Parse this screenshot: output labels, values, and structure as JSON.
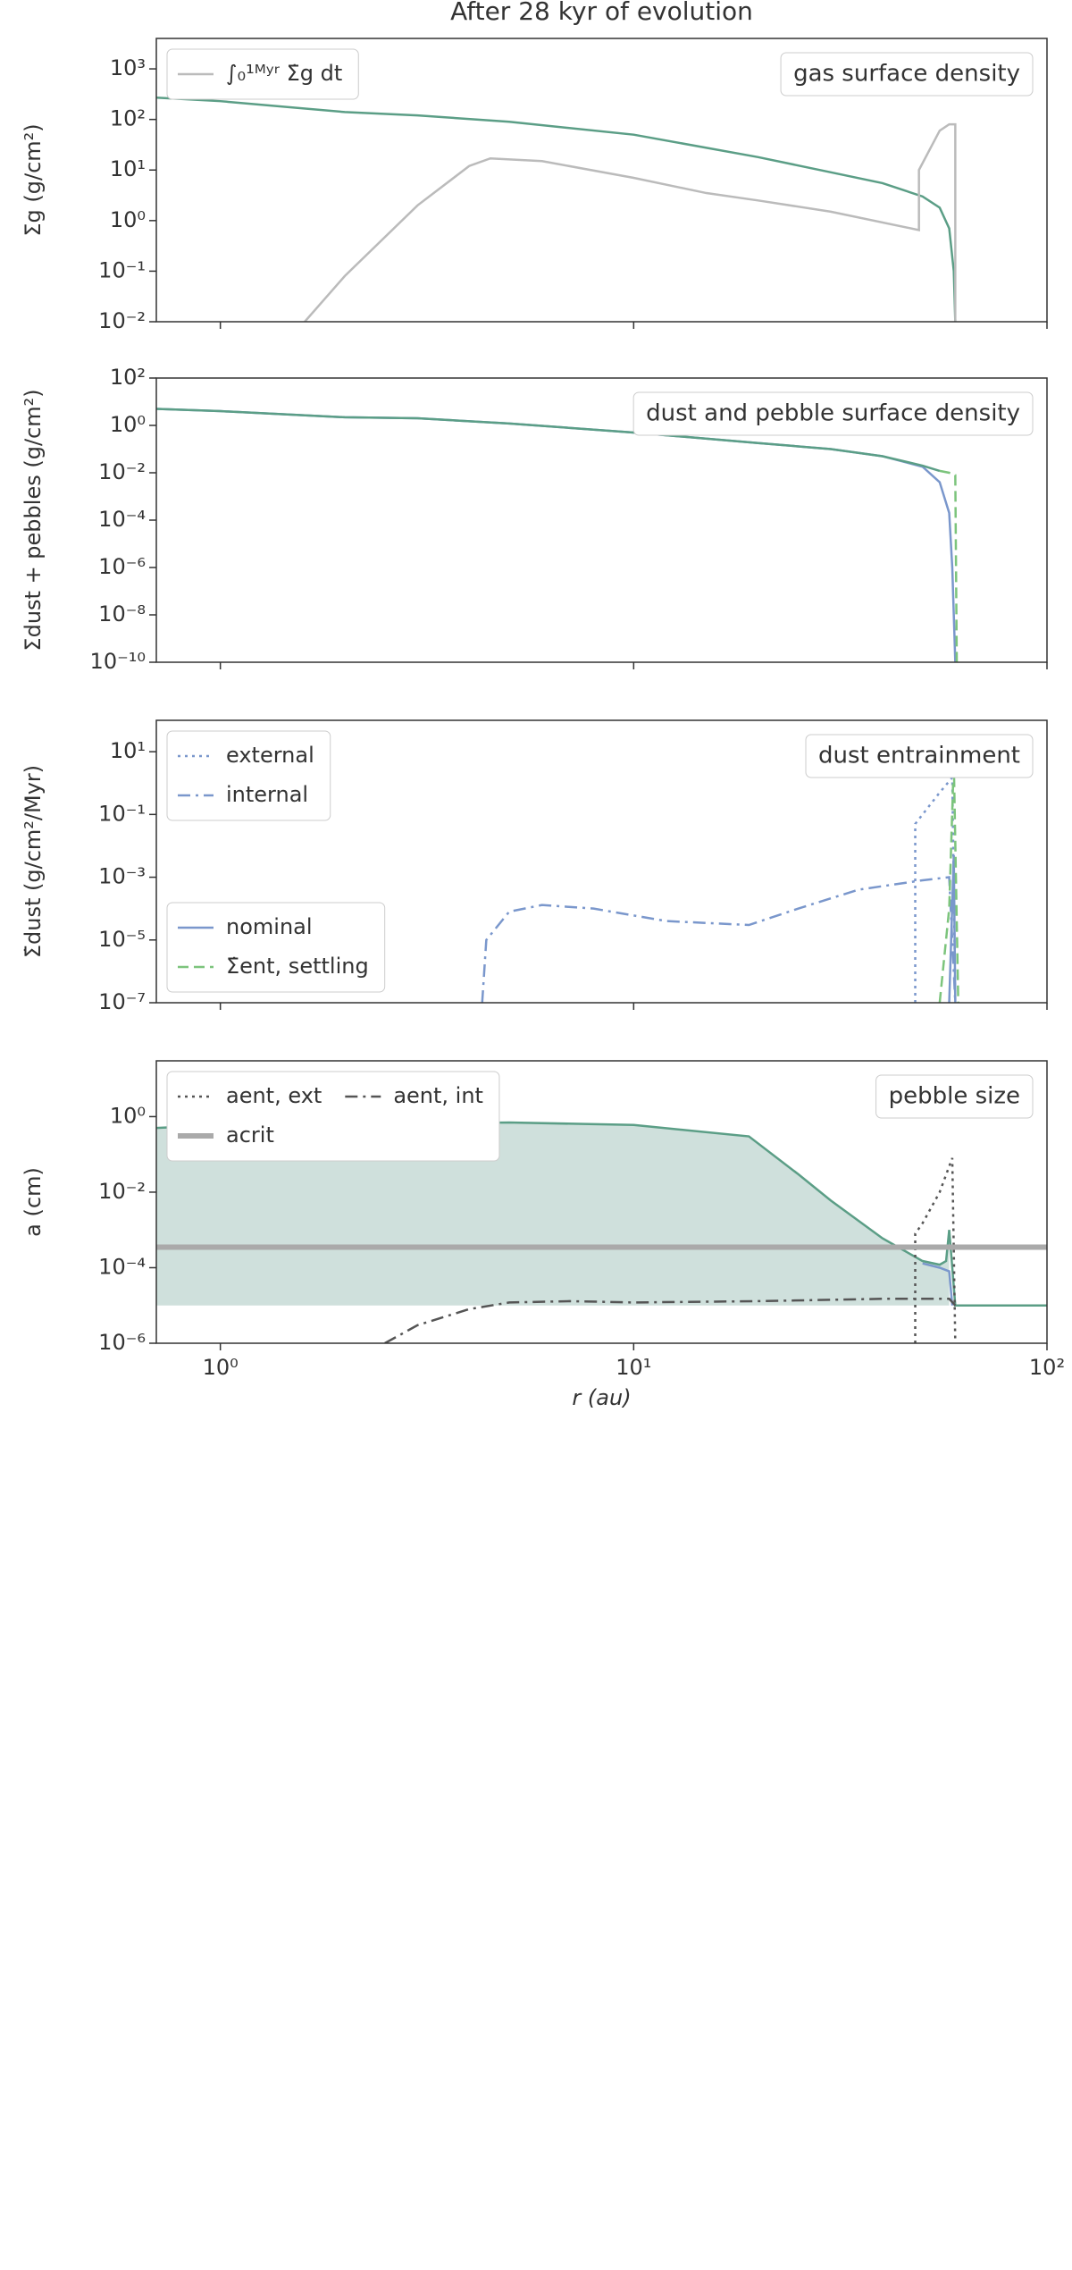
{
  "chart_data": [
    {
      "type": "line",
      "title": "After 28 kyr of evolution",
      "annotation": "gas surface density",
      "ylabel": "Σg (g/cm²)",
      "xscale": "log",
      "yscale": "log",
      "xlim": [
        0.7,
        100
      ],
      "xticks": [
        1,
        10,
        100
      ],
      "ylim": [
        0.01,
        4000
      ],
      "yticks": [
        {
          "value": 0.01,
          "label": "10⁻²"
        },
        {
          "value": 0.1,
          "label": "10⁻¹"
        },
        {
          "value": 1,
          "label": "10⁰"
        },
        {
          "value": 10,
          "label": "10¹"
        },
        {
          "value": 100,
          "label": "10²"
        },
        {
          "value": 1000,
          "label": "10³"
        }
      ],
      "series": [
        {
          "color": "#5b9e86",
          "dash": "solid",
          "x": [
            0.7,
            1,
            2,
            3,
            5,
            10,
            20,
            30,
            40,
            50,
            55,
            58,
            59.5,
            60
          ],
          "values": [
            270,
            230,
            140,
            120,
            90,
            50,
            18,
            9,
            5.5,
            3,
            1.8,
            0.7,
            0.1,
            0.01
          ]
        },
        {
          "name": "∫₀¹ᴹʸʳ Σ̇g dt",
          "color": "#bbbbbb",
          "dash": "solid",
          "legend": "upper left",
          "x": [
            1.6,
            2,
            3,
            4,
            4.5,
            6,
            10,
            15,
            20,
            30,
            49,
            49,
            55,
            58,
            60,
            60
          ],
          "values": [
            0.01,
            0.08,
            2,
            12,
            17,
            15,
            7,
            3.5,
            2.5,
            1.5,
            0.65,
            10,
            60,
            80,
            80,
            0.01
          ]
        }
      ]
    },
    {
      "type": "line",
      "annotation": "dust and pebble surface density",
      "ylabel": "Σdust + pebbles (g/cm²)",
      "xscale": "log",
      "yscale": "log",
      "xlim": [
        0.7,
        100
      ],
      "xticks": [
        1,
        10,
        100
      ],
      "ylim": [
        1e-10,
        100
      ],
      "yticks": [
        {
          "value": 1e-10,
          "label": "10⁻¹⁰"
        },
        {
          "value": 1e-08,
          "label": "10⁻⁸"
        },
        {
          "value": 1e-06,
          "label": "10⁻⁶"
        },
        {
          "value": 0.0001,
          "label": "10⁻⁴"
        },
        {
          "value": 0.01,
          "label": "10⁻²"
        },
        {
          "value": 1,
          "label": "10⁰"
        },
        {
          "value": 100,
          "label": "10²"
        }
      ],
      "series": [
        {
          "color": "#7a97cc",
          "dash": "solid",
          "x": [
            0.7,
            1,
            2,
            3,
            5,
            10,
            20,
            30,
            40,
            50,
            55,
            58,
            59,
            60
          ],
          "values": [
            5,
            4,
            2.2,
            2,
            1.2,
            0.5,
            0.18,
            0.1,
            0.05,
            0.018,
            0.004,
            0.0002,
            1e-06,
            1e-10
          ]
        },
        {
          "color": "#5b9e86",
          "dash": "solid",
          "x": [
            0.7,
            1,
            2,
            3,
            5,
            10,
            20,
            30,
            40,
            50,
            55
          ],
          "values": [
            5,
            4,
            2.2,
            2,
            1.2,
            0.5,
            0.18,
            0.1,
            0.05,
            0.02,
            0.012
          ]
        },
        {
          "color": "#7cc47c",
          "dash": "dashed",
          "x": [
            55,
            58,
            60,
            60.5
          ],
          "values": [
            0.012,
            0.01,
            0.008,
            1e-10
          ]
        }
      ]
    },
    {
      "type": "line",
      "annotation": "dust entrainment",
      "ylabel": "Σ̇dust (g/cm²/Myr)",
      "xscale": "log",
      "yscale": "log",
      "xlim": [
        0.7,
        100
      ],
      "xticks": [
        1,
        10,
        100
      ],
      "ylim": [
        1e-07,
        100
      ],
      "yticks": [
        {
          "value": 1e-07,
          "label": "10⁻⁷"
        },
        {
          "value": 1e-05,
          "label": "10⁻⁵"
        },
        {
          "value": 0.001,
          "label": "10⁻³"
        },
        {
          "value": 0.1,
          "label": "10⁻¹"
        },
        {
          "value": 10,
          "label": "10¹"
        }
      ],
      "series": [
        {
          "name": "external",
          "color": "#7a97cc",
          "dash": "dotted",
          "legend": "upper left",
          "x": [
            48,
            48,
            50,
            55,
            59,
            60
          ],
          "values": [
            1e-07,
            0.05,
            0.1,
            0.5,
            1.5,
            1e-07
          ]
        },
        {
          "name": "internal",
          "color": "#7a97cc",
          "dash": "dashdot",
          "legend": "upper left",
          "x": [
            4.3,
            4.4,
            5,
            6,
            8,
            12,
            19,
            25,
            35,
            50,
            58,
            60
          ],
          "values": [
            1e-07,
            1e-05,
            8e-05,
            0.00013,
            0.0001,
            4e-05,
            3e-05,
            0.0001,
            0.0004,
            0.0008,
            0.001,
            1e-07
          ]
        },
        {
          "name": "nominal",
          "color": "#7a97cc",
          "dash": "solid",
          "legend": "lower left",
          "x": [
            58,
            59.5,
            60
          ],
          "values": [
            1e-07,
            0.005,
            1e-07
          ]
        },
        {
          "name": "Σ̇ent, settling",
          "color": "#7cc47c",
          "dash": "dashed",
          "legend": "lower left",
          "x": [
            55,
            58,
            59.5,
            61
          ],
          "values": [
            1e-07,
            0.0001,
            5,
            1e-07
          ]
        }
      ]
    },
    {
      "type": "line",
      "annotation": "pebble size",
      "legend_columns": 2,
      "ylabel": "a (cm)",
      "xlabel": "r (au)",
      "xscale": "log",
      "yscale": "log",
      "xlim": [
        0.7,
        100
      ],
      "xticks": [
        {
          "value": 1,
          "label": "10⁰"
        },
        {
          "value": 10,
          "label": "10¹"
        },
        {
          "value": 100,
          "label": "10²"
        }
      ],
      "ylim": [
        1e-06,
        30
      ],
      "yticks": [
        {
          "value": 1e-06,
          "label": "10⁻⁶"
        },
        {
          "value": 0.0001,
          "label": "10⁻⁴"
        },
        {
          "value": 0.01,
          "label": "10⁻²"
        },
        {
          "value": 1,
          "label": "10⁰"
        }
      ],
      "series": [
        {
          "color": "#5b9e86",
          "dash": "solid",
          "fill": "#cfe0dc",
          "fill_to": 1e-05,
          "x": [
            0.7,
            1,
            2,
            3,
            5,
            10,
            19,
            25,
            30,
            40,
            50,
            55,
            57,
            58
          ],
          "values": [
            0.5,
            0.6,
            0.55,
            0.65,
            0.7,
            0.6,
            0.3,
            0.03,
            0.006,
            0.0006,
            0.00015,
            0.00012,
            0.00015,
            0.001
          ]
        },
        {
          "color": "#5b9e86",
          "dash": "solid",
          "x": [
            58,
            59,
            60,
            100
          ],
          "values": [
            0.001,
            0.0001,
            1e-05,
            1e-05
          ]
        },
        {
          "color": "#7a97cc",
          "dash": "solid",
          "x": [
            50,
            55,
            58,
            59
          ],
          "values": [
            0.00013,
            0.0001,
            8e-05,
            1e-05
          ]
        },
        {
          "name": "aent, ext",
          "color": "#555555",
          "dash": "dotted",
          "legend": "upper left",
          "x": [
            48,
            48,
            50,
            55,
            59,
            60
          ],
          "values": [
            1e-06,
            0.0008,
            0.0015,
            0.01,
            0.08,
            1e-06
          ]
        },
        {
          "name": "aent, int",
          "color": "#555555",
          "dash": "dashdot",
          "legend": "upper left",
          "x": [
            2.5,
            3,
            4,
            5,
            7,
            10,
            20,
            40,
            58,
            60
          ],
          "values": [
            1e-06,
            3e-06,
            8e-06,
            1.2e-05,
            1.3e-05,
            1.2e-05,
            1.3e-05,
            1.5e-05,
            1.5e-05,
            1e-05
          ]
        },
        {
          "name": "acrit",
          "color": "#aaaaaa",
          "dash": "solid",
          "width": 6,
          "legend": "upper left",
          "x": [
            0.7,
            100
          ],
          "values": [
            0.00035,
            0.00035
          ]
        }
      ]
    }
  ]
}
